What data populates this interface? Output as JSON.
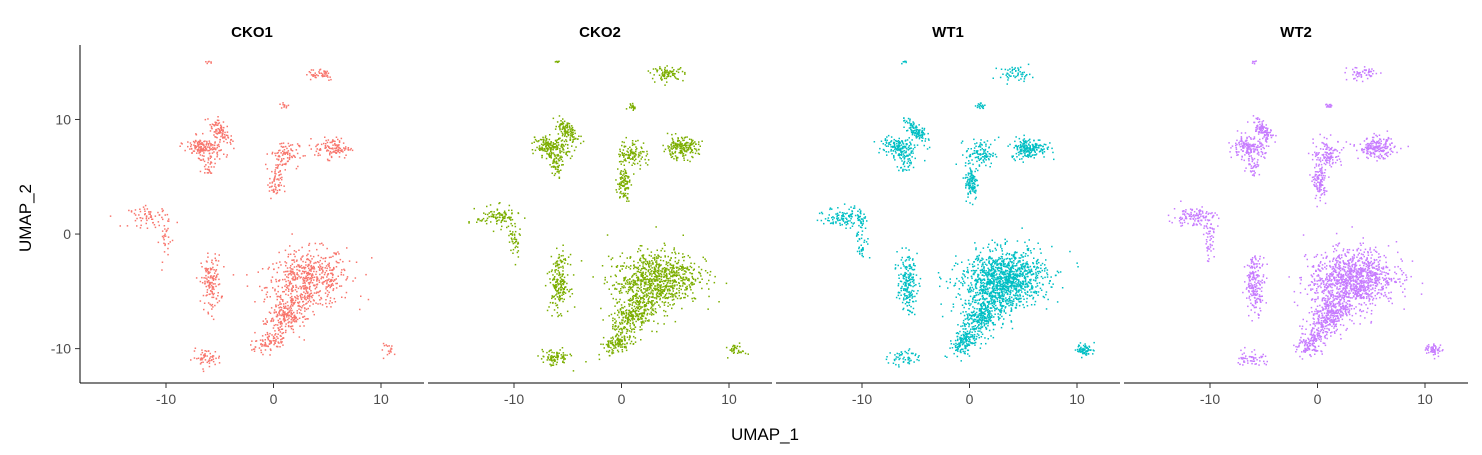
{
  "chart_data": {
    "type": "scatter",
    "facet_by": "sample",
    "panels": [
      {
        "title": "CKO1",
        "color": "#F8766D"
      },
      {
        "title": "CKO2",
        "color": "#7CAE00"
      },
      {
        "title": "WT1",
        "color": "#00BFC4"
      },
      {
        "title": "WT2",
        "color": "#C77CFF"
      }
    ],
    "xlabel": "UMAP_1",
    "ylabel": "UMAP_2",
    "xlim": [
      -18,
      14
    ],
    "ylim": [
      -13,
      16.5
    ],
    "xticks": [
      -10,
      0,
      10
    ],
    "yticks": [
      10,
      0,
      -10
    ],
    "grid": false,
    "legend": "none",
    "clusters": [
      {
        "id": "large",
        "cx": 3.2,
        "cy": -4.0,
        "sx": 2.6,
        "sy": 1.7,
        "rot": 0.15,
        "rel": [
          1.0,
          1.6,
          2.2,
          2.0
        ]
      },
      {
        "id": "tail",
        "cx": 1.2,
        "cy": -7.2,
        "sx": 1.6,
        "sy": 1.0,
        "rot": 0.7,
        "rel": [
          0.4,
          0.5,
          0.6,
          0.6
        ]
      },
      {
        "id": "tail2",
        "cx": -0.5,
        "cy": -9.5,
        "sx": 1.0,
        "sy": 0.6,
        "rot": 0.5,
        "rel": [
          0.15,
          0.2,
          0.25,
          0.25
        ]
      },
      {
        "id": "mid-left",
        "cx": -5.8,
        "cy": -4.3,
        "sx": 0.6,
        "sy": 1.6,
        "rot": 0.0,
        "rel": [
          0.25,
          0.35,
          0.35,
          0.35
        ]
      },
      {
        "id": "bottom-left",
        "cx": -6.2,
        "cy": -10.8,
        "sx": 0.9,
        "sy": 0.5,
        "rot": 0.0,
        "rel": [
          0.1,
          0.15,
          0.1,
          0.1
        ]
      },
      {
        "id": "bottom-right",
        "cx": 10.8,
        "cy": -10.1,
        "sx": 0.55,
        "sy": 0.35,
        "rot": 0.0,
        "rel": [
          0.03,
          0.06,
          0.12,
          0.1
        ]
      },
      {
        "id": "left",
        "cx": -11.5,
        "cy": 1.5,
        "sx": 1.3,
        "sy": 0.6,
        "rot": 0.0,
        "rel": [
          0.12,
          0.18,
          0.22,
          0.22
        ]
      },
      {
        "id": "left-arm",
        "cx": -10.0,
        "cy": -0.5,
        "sx": 0.4,
        "sy": 1.2,
        "rot": 0.0,
        "rel": [
          0.05,
          0.08,
          0.08,
          0.08
        ]
      },
      {
        "id": "upper-left",
        "cx": -6.5,
        "cy": 7.5,
        "sx": 1.1,
        "sy": 0.6,
        "rot": -0.2,
        "rel": [
          0.3,
          0.35,
          0.3,
          0.3
        ]
      },
      {
        "id": "upper-left-arm",
        "cx": -5.0,
        "cy": 9.0,
        "sx": 0.9,
        "sy": 0.4,
        "rot": -0.8,
        "rel": [
          0.15,
          0.2,
          0.2,
          0.2
        ]
      },
      {
        "id": "upper-left-low",
        "cx": -6.0,
        "cy": 6.0,
        "sx": 0.4,
        "sy": 0.6,
        "rot": 0.0,
        "rel": [
          0.05,
          0.08,
          0.06,
          0.06
        ]
      },
      {
        "id": "upper-center",
        "cx": 1.0,
        "cy": 7.0,
        "sx": 0.9,
        "sy": 0.8,
        "rot": 0.0,
        "rel": [
          0.15,
          0.2,
          0.2,
          0.22
        ]
      },
      {
        "id": "upper-center-stem",
        "cx": 0.2,
        "cy": 4.5,
        "sx": 0.4,
        "sy": 1.0,
        "rot": 0.0,
        "rel": [
          0.12,
          0.18,
          0.2,
          0.2
        ]
      },
      {
        "id": "upper-right",
        "cx": 5.5,
        "cy": 7.5,
        "sx": 1.1,
        "sy": 0.6,
        "rot": 0.0,
        "rel": [
          0.2,
          0.35,
          0.35,
          0.35
        ]
      },
      {
        "id": "top",
        "cx": 4.3,
        "cy": 14.0,
        "sx": 1.0,
        "sy": 0.4,
        "rot": 0.0,
        "rel": [
          0.08,
          0.15,
          0.1,
          0.1
        ]
      },
      {
        "id": "small-mid",
        "cx": 1.0,
        "cy": 11.2,
        "sx": 0.3,
        "sy": 0.2,
        "rot": 0.0,
        "rel": [
          0.02,
          0.03,
          0.03,
          0.03
        ]
      },
      {
        "id": "top-left",
        "cx": -6.0,
        "cy": 15.0,
        "sx": 0.2,
        "sy": 0.1,
        "rot": 0.0,
        "rel": [
          0.01,
          0.01,
          0.01,
          0.01
        ]
      }
    ]
  }
}
